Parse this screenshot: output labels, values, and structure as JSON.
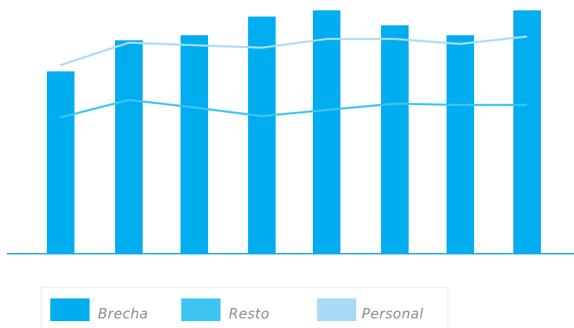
{
  "chart_data": {
    "type": "bar",
    "categories": [
      "",
      "",
      "",
      "",
      "",
      "",
      "",
      ""
    ],
    "series": [
      {
        "name": "Brecha",
        "type": "bar",
        "values": [
          73,
          85.5,
          87.5,
          95,
          97.5,
          91.5,
          87.5,
          97.5
        ]
      },
      {
        "name": "Resto",
        "type": "line",
        "values": [
          54.5,
          61.5,
          58.5,
          55,
          57.5,
          60,
          59.5,
          59.5
        ]
      },
      {
        "name": "Personal",
        "type": "line",
        "values": [
          75.5,
          84.5,
          83.5,
          82.5,
          86,
          86,
          84,
          87
        ]
      }
    ],
    "ylim": [
      0,
      100
    ],
    "grid": false,
    "legend_position": "bottom-left",
    "colors": {
      "Brecha": "#00ADEF",
      "Resto": "#3EC4F2",
      "Personal": "#A8DCF6",
      "axis": "#1AA9E6",
      "legend_border": "#e3e3e3"
    }
  }
}
